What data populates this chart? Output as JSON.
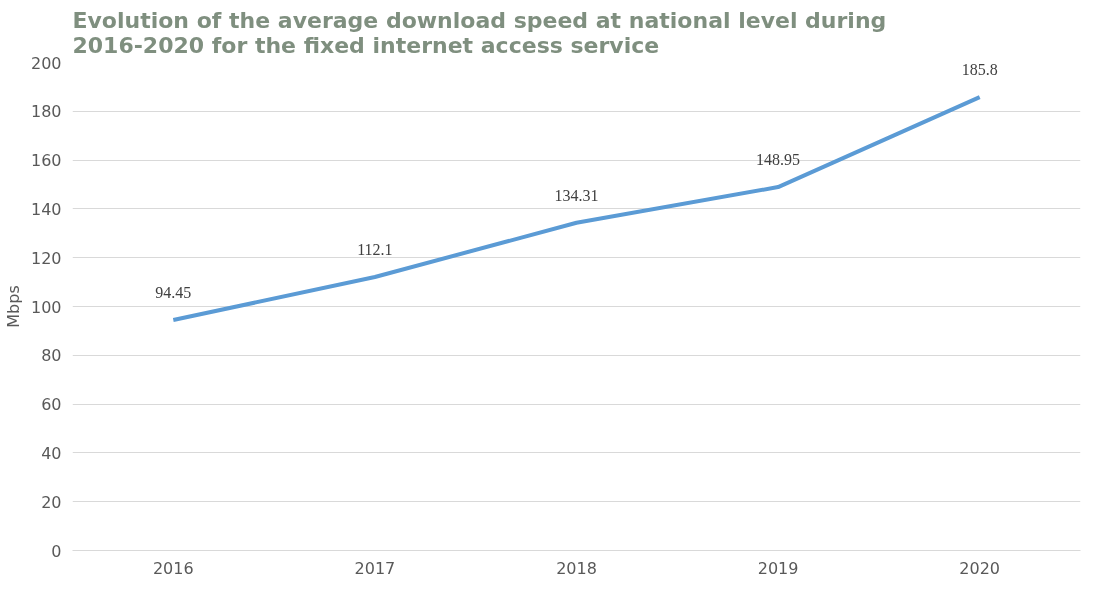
{
  "chart_data": {
    "type": "line",
    "title": "Evolution of the average download speed at national level during 2016-2020 for the fixed internet access service",
    "ylabel": "Mbps",
    "categories": [
      "2016",
      "2017",
      "2018",
      "2019",
      "2020"
    ],
    "series": [
      {
        "color": "#5b9bd5",
        "values": [
          94.45,
          112.1,
          134.31,
          148.95,
          185.8
        ]
      }
    ],
    "ylim": [
      0,
      200
    ],
    "yticks": [
      0,
      20,
      40,
      60,
      80,
      100,
      120,
      140,
      160,
      180,
      200
    ],
    "grid": "y",
    "data_labels": true,
    "marker": "none",
    "line_style": "solid"
  }
}
